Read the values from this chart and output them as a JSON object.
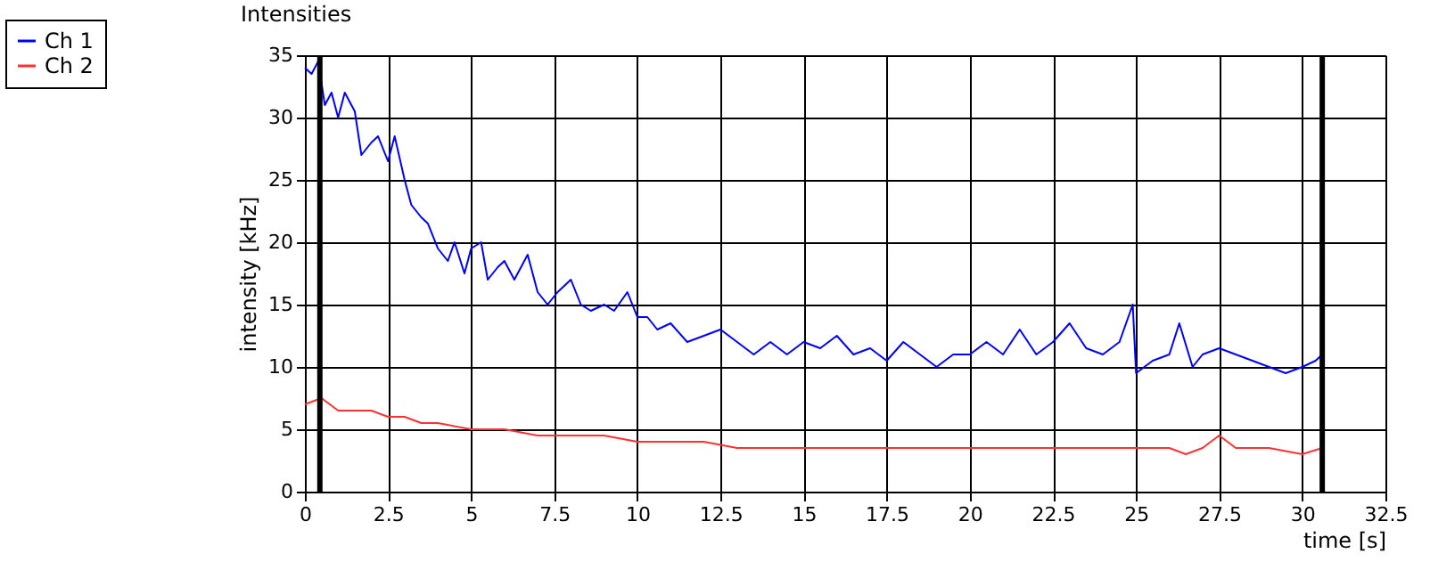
{
  "chart_data": {
    "type": "line",
    "title": "Intensities",
    "xlabel": "time [s]",
    "ylabel": "intensity [kHz]",
    "xlim": [
      0,
      32.5
    ],
    "xticks": [
      0,
      2.5,
      5,
      7.5,
      10,
      12.5,
      15,
      17.5,
      20,
      22.5,
      25,
      27.5,
      30,
      32.5
    ],
    "ylim": [
      0,
      35
    ],
    "yticks": [
      0,
      5,
      10,
      15,
      20,
      25,
      30,
      35
    ],
    "grid": true,
    "legend": "top left",
    "marker": "none",
    "line_style": "solid",
    "ref_lines": [
      {
        "axis": "x",
        "value": 0.45,
        "color": "#000000"
      },
      {
        "axis": "x",
        "value": 30.6,
        "color": "#000000"
      }
    ],
    "series": [
      {
        "name": "Ch 1",
        "color": "#0000ff",
        "x": [
          0,
          0.2,
          0.4,
          0.6,
          0.8,
          1.0,
          1.2,
          1.5,
          1.7,
          2.0,
          2.2,
          2.5,
          2.7,
          3.0,
          3.2,
          3.5,
          3.7,
          4.0,
          4.3,
          4.5,
          4.8,
          5.0,
          5.3,
          5.5,
          5.8,
          6.0,
          6.3,
          6.7,
          7.0,
          7.3,
          7.6,
          8.0,
          8.3,
          8.6,
          9.0,
          9.3,
          9.7,
          10.0,
          10.3,
          10.6,
          11.0,
          11.5,
          12.0,
          12.5,
          13.0,
          13.5,
          14.0,
          14.5,
          15.0,
          15.5,
          16.0,
          16.5,
          17.0,
          17.5,
          18.0,
          18.5,
          19.0,
          19.5,
          20.0,
          20.5,
          21.0,
          21.5,
          22.0,
          22.5,
          23.0,
          23.5,
          24.0,
          24.5,
          24.9,
          25.0,
          25.5,
          26.0,
          26.3,
          26.7,
          27.0,
          27.5,
          28.0,
          28.5,
          29.0,
          29.5,
          30.0,
          30.4,
          30.6
        ],
        "values": [
          34,
          33.5,
          34.5,
          31,
          32,
          30,
          32,
          30.5,
          27,
          28,
          28.5,
          26.5,
          28.5,
          25,
          23,
          22,
          21.5,
          19.5,
          18.5,
          20,
          17.5,
          19.5,
          20,
          17,
          18,
          18.5,
          17,
          19,
          16,
          15,
          16,
          17,
          15,
          14.5,
          15,
          14.5,
          16,
          14,
          14,
          13,
          13.5,
          12,
          12.5,
          13,
          12,
          11,
          12,
          11,
          12,
          11.5,
          12.5,
          11,
          11.5,
          10.5,
          12,
          11,
          10,
          11,
          11,
          12,
          11,
          13,
          11,
          12,
          13.5,
          11.5,
          11,
          12,
          15,
          9.5,
          10.5,
          11,
          13.5,
          10,
          11,
          11.5,
          11,
          10.5,
          10,
          9.5,
          10,
          10.5,
          11
        ]
      },
      {
        "name": "Ch 2",
        "color": "#ff3030",
        "x": [
          0,
          0.5,
          1,
          2,
          2.5,
          3,
          3.5,
          4,
          5,
          6,
          7,
          8,
          9,
          10,
          11,
          12,
          13,
          14,
          15,
          16,
          17,
          18,
          19,
          20,
          21,
          22,
          23,
          24,
          25,
          25.5,
          26,
          26.5,
          27,
          27.5,
          28,
          29,
          30,
          30.6
        ],
        "values": [
          7,
          7.5,
          6.5,
          6.5,
          6,
          6,
          5.5,
          5.5,
          5,
          5,
          4.5,
          4.5,
          4.5,
          4,
          4,
          4,
          3.5,
          3.5,
          3.5,
          3.5,
          3.5,
          3.5,
          3.5,
          3.5,
          3.5,
          3.5,
          3.5,
          3.5,
          3.5,
          3.5,
          3.5,
          3,
          3.5,
          4.5,
          3.5,
          3.5,
          3,
          3.5
        ]
      }
    ]
  }
}
